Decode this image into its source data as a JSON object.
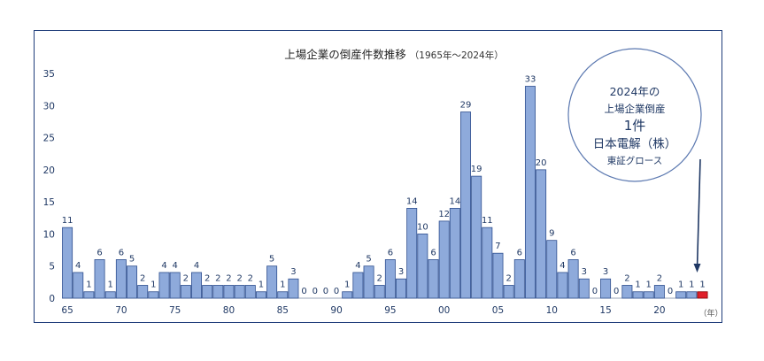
{
  "chart_data": {
    "type": "bar",
    "title": "上場企業の倒産件数推移",
    "title_suffix": "（1965年～2024年）",
    "xunit": "（年）",
    "ylim": [
      0,
      35
    ],
    "yticks": [
      "0",
      "5",
      "10",
      "15",
      "20",
      "25",
      "30",
      "35"
    ],
    "x_tick_labels": [
      "65",
      "70",
      "75",
      "80",
      "85",
      "90",
      "95",
      "00",
      "05",
      "10",
      "15",
      "20"
    ],
    "x_tick_years": [
      1965,
      1970,
      1975,
      1980,
      1985,
      1990,
      1995,
      2000,
      2005,
      2010,
      2015,
      2020
    ],
    "grid": false,
    "bar_color": "#8eaadb",
    "bar_edge_color": "#2f4f8f",
    "highlight_color": "#e0202a",
    "highlight_year": 2024,
    "years": [
      1965,
      1966,
      1967,
      1968,
      1969,
      1970,
      1971,
      1972,
      1973,
      1974,
      1975,
      1976,
      1977,
      1978,
      1979,
      1980,
      1981,
      1982,
      1983,
      1984,
      1985,
      1986,
      1987,
      1988,
      1989,
      1990,
      1991,
      1992,
      1993,
      1994,
      1995,
      1996,
      1997,
      1998,
      1999,
      2000,
      2001,
      2002,
      2003,
      2004,
      2005,
      2006,
      2007,
      2008,
      2009,
      2010,
      2011,
      2012,
      2013,
      2014,
      2015,
      2016,
      2017,
      2018,
      2019,
      2020,
      2021,
      2022,
      2023,
      2024
    ],
    "values": [
      11,
      4,
      1,
      6,
      1,
      6,
      5,
      2,
      1,
      4,
      4,
      2,
      4,
      2,
      2,
      2,
      2,
      2,
      1,
      5,
      1,
      3,
      0,
      0,
      0,
      0,
      1,
      4,
      5,
      2,
      6,
      3,
      14,
      10,
      6,
      12,
      14,
      29,
      19,
      11,
      7,
      2,
      6,
      33,
      20,
      9,
      4,
      6,
      3,
      0,
      3,
      0,
      2,
      1,
      1,
      2,
      0,
      1,
      1,
      1
    ],
    "callout": {
      "lines": [
        "2024年の",
        "上場企業倒産",
        "1件",
        "日本電解（株）",
        "東証グロース"
      ]
    }
  }
}
